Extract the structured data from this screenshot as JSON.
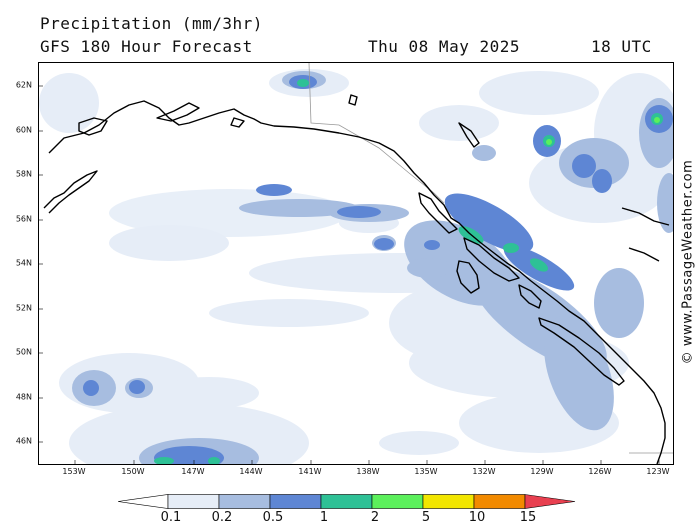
{
  "header": {
    "title": "Precipitation (mm/3hr)",
    "subtitle": "GFS 180 Hour Forecast",
    "date": "Thu 08 May 2025",
    "time": "18 UTC"
  },
  "map": {
    "lat_labels": [
      "62N",
      "60N",
      "58N",
      "56N",
      "54N",
      "52N",
      "50N",
      "48N",
      "46N"
    ],
    "lon_labels": [
      "153W",
      "150W",
      "147W",
      "144W",
      "141W",
      "138W",
      "135W",
      "132W",
      "129W",
      "126W",
      "123W"
    ],
    "colors": {
      "ocean": "#ffffff",
      "coast": "#000000",
      "border": "#999999"
    }
  },
  "legend": {
    "labels": [
      "0.1",
      "0.2",
      "0.5",
      "1",
      "2",
      "5",
      "10",
      "15"
    ],
    "colors": [
      "#ffffff",
      "#e6edf7",
      "#a7bde0",
      "#5e86d4",
      "#2ec196",
      "#5cf05c",
      "#f2e600",
      "#f28a00",
      "#e84050"
    ]
  },
  "credit": "© www.PassageWeather.com"
}
